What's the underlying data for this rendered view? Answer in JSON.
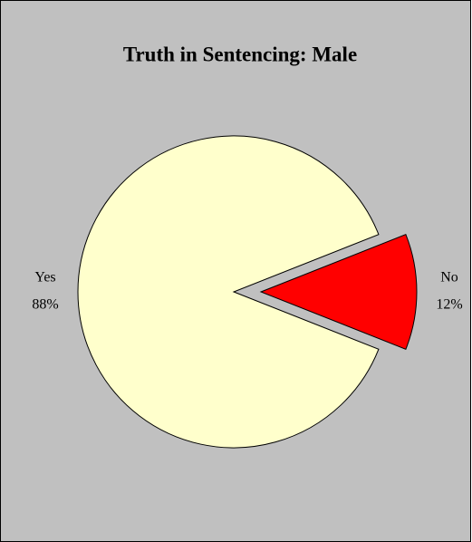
{
  "chart_data": {
    "type": "pie",
    "title": "Truth in Sentencing: Male",
    "categories": [
      "Yes",
      "No"
    ],
    "values": [
      88,
      12
    ],
    "value_labels": [
      "88%",
      "12%"
    ],
    "colors": [
      "#ffffcc",
      "#ff0000"
    ]
  }
}
